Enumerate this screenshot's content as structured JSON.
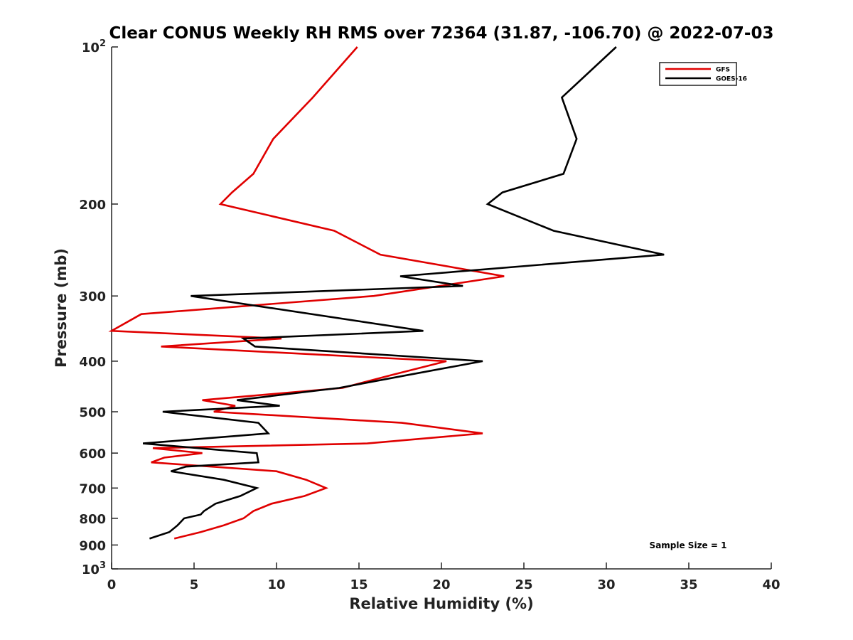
{
  "chart_data": {
    "type": "line",
    "title": "Clear CONUS Weekly RH RMS over 72364 (31.87, -106.70) @ 2022-07-03",
    "xlabel": "Relative Humidity (%)",
    "ylabel": "Pressure (mb)",
    "xlim": [
      0,
      40
    ],
    "ylim": [
      100,
      1000
    ],
    "yscale": "log",
    "yreversed": true,
    "grid": false,
    "legend_position": "top-right",
    "x_ticks": [
      0,
      5,
      10,
      15,
      20,
      25,
      30,
      35,
      40
    ],
    "x_tick_labels": [
      "0",
      "5",
      "10",
      "15",
      "20",
      "25",
      "30",
      "35",
      "40"
    ],
    "y_ticks": [
      {
        "value": 100,
        "base": "10",
        "exp": "2"
      },
      {
        "value": 200,
        "label": "200"
      },
      {
        "value": 300,
        "label": "300"
      },
      {
        "value": 400,
        "label": "400"
      },
      {
        "value": 500,
        "label": "500"
      },
      {
        "value": 600,
        "label": "600"
      },
      {
        "value": 700,
        "label": "700"
      },
      {
        "value": 800,
        "label": "800"
      },
      {
        "value": 900,
        "label": "900"
      },
      {
        "value": 1000,
        "base": "10",
        "exp": "3"
      }
    ],
    "annotation": "Sample Size = 1",
    "series": [
      {
        "name": "GFS",
        "color": "#e00000",
        "points": [
          [
            14.9,
            100
          ],
          [
            12.2,
            125
          ],
          [
            9.8,
            150
          ],
          [
            8.6,
            175
          ],
          [
            7.3,
            190
          ],
          [
            6.6,
            200
          ],
          [
            13.5,
            225
          ],
          [
            16.3,
            250
          ],
          [
            23.8,
            275
          ],
          [
            15.9,
            300
          ],
          [
            1.8,
            325
          ],
          [
            0.0,
            350
          ],
          [
            10.3,
            362
          ],
          [
            3.0,
            375
          ],
          [
            20.3,
            400
          ],
          [
            17.0,
            425
          ],
          [
            14.0,
            450
          ],
          [
            5.5,
            475
          ],
          [
            7.5,
            487
          ],
          [
            6.2,
            500
          ],
          [
            17.6,
            525
          ],
          [
            22.5,
            550
          ],
          [
            15.5,
            575
          ],
          [
            2.5,
            587
          ],
          [
            5.5,
            600
          ],
          [
            3.2,
            612
          ],
          [
            2.4,
            625
          ],
          [
            10.0,
            650
          ],
          [
            11.8,
            675
          ],
          [
            13.0,
            700
          ],
          [
            11.7,
            725
          ],
          [
            9.7,
            750
          ],
          [
            8.6,
            775
          ],
          [
            8.0,
            800
          ],
          [
            6.8,
            825
          ],
          [
            5.4,
            850
          ],
          [
            3.8,
            875
          ]
        ]
      },
      {
        "name": "GOES-16",
        "color": "#000000",
        "points": [
          [
            30.6,
            100
          ],
          [
            27.3,
            125
          ],
          [
            28.2,
            150
          ],
          [
            27.4,
            175
          ],
          [
            23.7,
            190
          ],
          [
            22.8,
            200
          ],
          [
            26.8,
            225
          ],
          [
            33.5,
            250
          ],
          [
            17.5,
            275
          ],
          [
            21.3,
            287
          ],
          [
            4.8,
            300
          ],
          [
            18.9,
            350
          ],
          [
            8.0,
            362
          ],
          [
            8.7,
            375
          ],
          [
            22.5,
            400
          ],
          [
            18.0,
            425
          ],
          [
            13.8,
            450
          ],
          [
            7.6,
            475
          ],
          [
            10.2,
            487
          ],
          [
            3.1,
            500
          ],
          [
            8.9,
            525
          ],
          [
            9.5,
            550
          ],
          [
            1.9,
            575
          ],
          [
            8.8,
            600
          ],
          [
            8.9,
            625
          ],
          [
            4.5,
            637
          ],
          [
            3.6,
            650
          ],
          [
            6.8,
            675
          ],
          [
            8.8,
            700
          ],
          [
            7.8,
            725
          ],
          [
            6.3,
            750
          ],
          [
            5.6,
            775
          ],
          [
            5.4,
            787
          ],
          [
            4.4,
            800
          ],
          [
            4.0,
            825
          ],
          [
            3.5,
            850
          ],
          [
            2.3,
            875
          ]
        ]
      }
    ]
  }
}
